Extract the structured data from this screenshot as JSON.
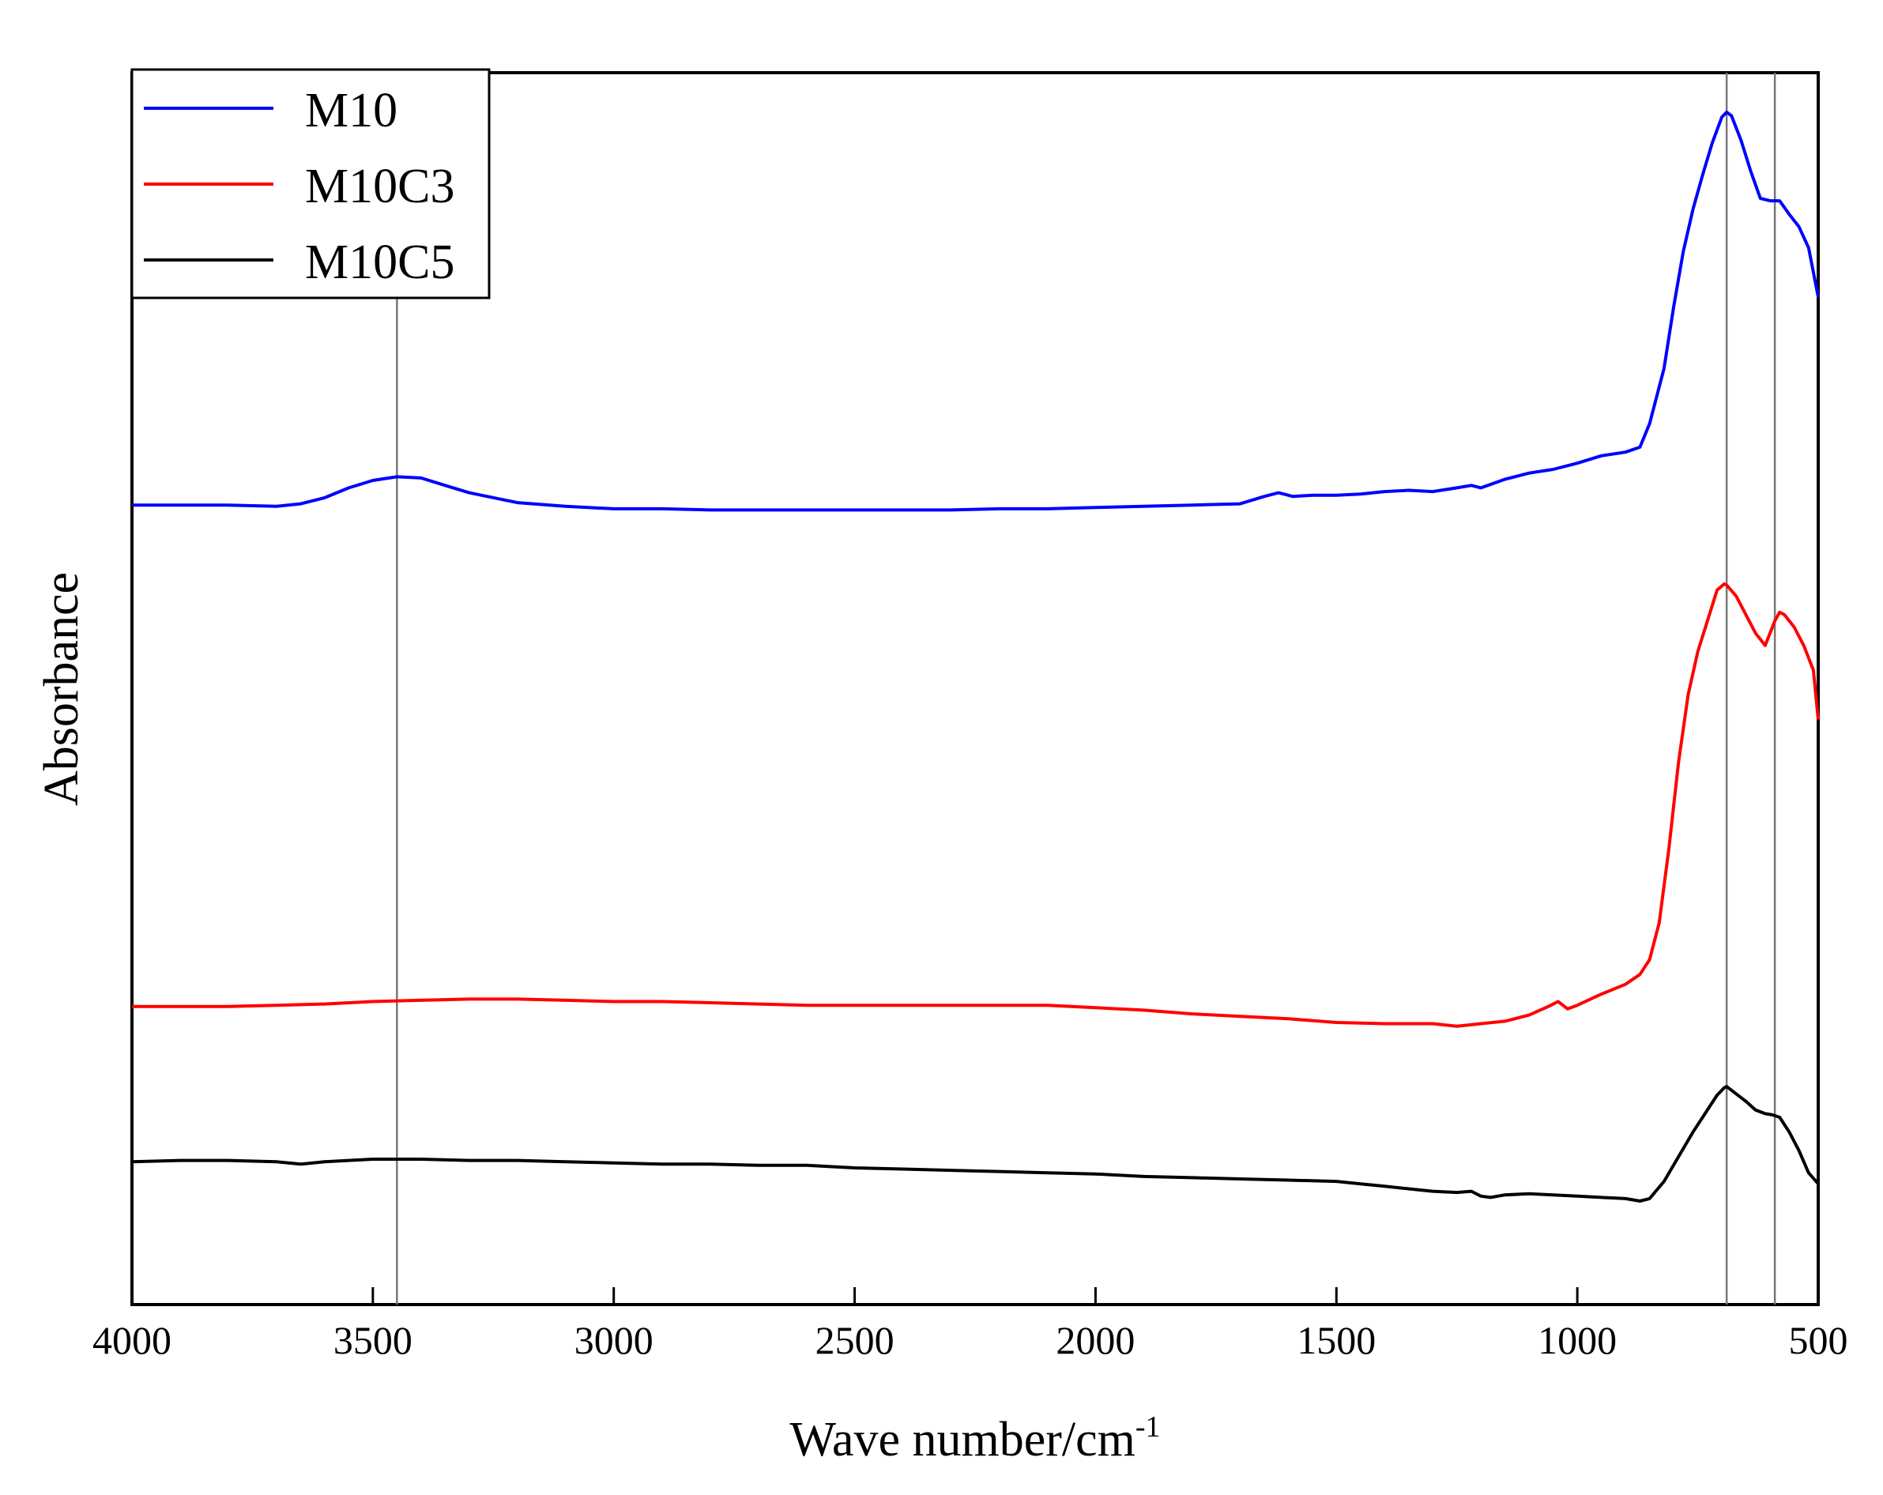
{
  "chart_data": {
    "type": "line",
    "title": "",
    "xlabel": "Wave number/cm",
    "xlabel_superscript": "-1",
    "ylabel": "Absorbance",
    "xlim": [
      4000,
      500
    ],
    "ylim": [
      0,
      100
    ],
    "x_reversed": true,
    "y_ticks_shown": false,
    "xticks": [
      4000,
      3500,
      3000,
      2500,
      2000,
      1500,
      1000,
      500
    ],
    "xtick_labels": [
      "4000",
      "3500",
      "3000",
      "2500",
      "2000",
      "1500",
      "1000",
      "500"
    ],
    "legend_position": "top-left",
    "reference_lines_x": [
      3450,
      690,
      590
    ],
    "series": [
      {
        "name": "M10",
        "color": "#0000ff",
        "points": [
          [
            4000,
            64.9
          ],
          [
            3900,
            64.9
          ],
          [
            3800,
            64.9
          ],
          [
            3700,
            64.8
          ],
          [
            3650,
            65.0
          ],
          [
            3600,
            65.5
          ],
          [
            3550,
            66.3
          ],
          [
            3500,
            66.9
          ],
          [
            3450,
            67.2
          ],
          [
            3400,
            67.1
          ],
          [
            3350,
            66.5
          ],
          [
            3300,
            65.9
          ],
          [
            3200,
            65.1
          ],
          [
            3100,
            64.8
          ],
          [
            3000,
            64.6
          ],
          [
            2900,
            64.6
          ],
          [
            2800,
            64.5
          ],
          [
            2700,
            64.5
          ],
          [
            2600,
            64.5
          ],
          [
            2500,
            64.5
          ],
          [
            2400,
            64.5
          ],
          [
            2300,
            64.5
          ],
          [
            2200,
            64.6
          ],
          [
            2100,
            64.6
          ],
          [
            2000,
            64.7
          ],
          [
            1900,
            64.8
          ],
          [
            1800,
            64.9
          ],
          [
            1700,
            65.0
          ],
          [
            1650,
            65.6
          ],
          [
            1620,
            65.9
          ],
          [
            1590,
            65.6
          ],
          [
            1550,
            65.7
          ],
          [
            1500,
            65.7
          ],
          [
            1450,
            65.8
          ],
          [
            1400,
            66.0
          ],
          [
            1350,
            66.1
          ],
          [
            1300,
            66.0
          ],
          [
            1250,
            66.3
          ],
          [
            1220,
            66.5
          ],
          [
            1200,
            66.3
          ],
          [
            1150,
            67.0
          ],
          [
            1100,
            67.5
          ],
          [
            1050,
            67.8
          ],
          [
            1000,
            68.3
          ],
          [
            950,
            68.9
          ],
          [
            900,
            69.2
          ],
          [
            870,
            69.6
          ],
          [
            850,
            71.5
          ],
          [
            820,
            76.0
          ],
          [
            800,
            81.0
          ],
          [
            780,
            85.5
          ],
          [
            760,
            88.9
          ],
          [
            740,
            91.7
          ],
          [
            720,
            94.3
          ],
          [
            700,
            96.4
          ],
          [
            690,
            96.8
          ],
          [
            680,
            96.5
          ],
          [
            660,
            94.5
          ],
          [
            640,
            92.0
          ],
          [
            620,
            89.8
          ],
          [
            600,
            89.6
          ],
          [
            580,
            89.6
          ],
          [
            560,
            88.5
          ],
          [
            540,
            87.5
          ],
          [
            520,
            85.8
          ],
          [
            500,
            81.8
          ]
        ]
      },
      {
        "name": "M10C3",
        "color": "#ff0000",
        "points": [
          [
            4000,
            24.2
          ],
          [
            3900,
            24.2
          ],
          [
            3800,
            24.2
          ],
          [
            3700,
            24.3
          ],
          [
            3600,
            24.4
          ],
          [
            3500,
            24.6
          ],
          [
            3400,
            24.7
          ],
          [
            3300,
            24.8
          ],
          [
            3200,
            24.8
          ],
          [
            3100,
            24.7
          ],
          [
            3000,
            24.6
          ],
          [
            2900,
            24.6
          ],
          [
            2800,
            24.5
          ],
          [
            2700,
            24.4
          ],
          [
            2600,
            24.3
          ],
          [
            2500,
            24.3
          ],
          [
            2400,
            24.3
          ],
          [
            2300,
            24.3
          ],
          [
            2200,
            24.3
          ],
          [
            2100,
            24.3
          ],
          [
            2000,
            24.1
          ],
          [
            1900,
            23.9
          ],
          [
            1800,
            23.6
          ],
          [
            1700,
            23.4
          ],
          [
            1600,
            23.2
          ],
          [
            1500,
            22.9
          ],
          [
            1400,
            22.8
          ],
          [
            1300,
            22.8
          ],
          [
            1250,
            22.6
          ],
          [
            1200,
            22.8
          ],
          [
            1150,
            23.0
          ],
          [
            1100,
            23.5
          ],
          [
            1060,
            24.2
          ],
          [
            1040,
            24.6
          ],
          [
            1020,
            24.0
          ],
          [
            1000,
            24.3
          ],
          [
            950,
            25.2
          ],
          [
            900,
            26.0
          ],
          [
            870,
            26.8
          ],
          [
            850,
            28.0
          ],
          [
            830,
            31.0
          ],
          [
            810,
            37.0
          ],
          [
            790,
            44.0
          ],
          [
            770,
            49.5
          ],
          [
            750,
            53.0
          ],
          [
            730,
            55.5
          ],
          [
            710,
            58.0
          ],
          [
            695,
            58.5
          ],
          [
            690,
            58.4
          ],
          [
            670,
            57.5
          ],
          [
            650,
            56.0
          ],
          [
            630,
            54.5
          ],
          [
            610,
            53.5
          ],
          [
            590,
            55.5
          ],
          [
            580,
            56.2
          ],
          [
            570,
            56.0
          ],
          [
            550,
            55.0
          ],
          [
            530,
            53.5
          ],
          [
            510,
            51.5
          ],
          [
            500,
            47.5
          ]
        ]
      },
      {
        "name": "M10C5",
        "color": "#000000",
        "points": [
          [
            4000,
            11.6
          ],
          [
            3900,
            11.7
          ],
          [
            3800,
            11.7
          ],
          [
            3700,
            11.6
          ],
          [
            3650,
            11.4
          ],
          [
            3600,
            11.6
          ],
          [
            3500,
            11.8
          ],
          [
            3400,
            11.8
          ],
          [
            3300,
            11.7
          ],
          [
            3200,
            11.7
          ],
          [
            3100,
            11.6
          ],
          [
            3000,
            11.5
          ],
          [
            2900,
            11.4
          ],
          [
            2800,
            11.4
          ],
          [
            2700,
            11.3
          ],
          [
            2600,
            11.3
          ],
          [
            2500,
            11.1
          ],
          [
            2400,
            11.0
          ],
          [
            2300,
            10.9
          ],
          [
            2200,
            10.8
          ],
          [
            2100,
            10.7
          ],
          [
            2000,
            10.6
          ],
          [
            1900,
            10.4
          ],
          [
            1800,
            10.3
          ],
          [
            1700,
            10.2
          ],
          [
            1600,
            10.1
          ],
          [
            1500,
            10.0
          ],
          [
            1450,
            9.8
          ],
          [
            1400,
            9.6
          ],
          [
            1350,
            9.4
          ],
          [
            1300,
            9.2
          ],
          [
            1250,
            9.1
          ],
          [
            1220,
            9.2
          ],
          [
            1200,
            8.8
          ],
          [
            1180,
            8.7
          ],
          [
            1150,
            8.9
          ],
          [
            1100,
            9.0
          ],
          [
            1050,
            8.9
          ],
          [
            1000,
            8.8
          ],
          [
            950,
            8.7
          ],
          [
            900,
            8.6
          ],
          [
            870,
            8.4
          ],
          [
            850,
            8.6
          ],
          [
            820,
            10.0
          ],
          [
            790,
            12.0
          ],
          [
            760,
            14.0
          ],
          [
            730,
            15.8
          ],
          [
            710,
            17.0
          ],
          [
            695,
            17.6
          ],
          [
            690,
            17.7
          ],
          [
            670,
            17.1
          ],
          [
            650,
            16.5
          ],
          [
            630,
            15.8
          ],
          [
            610,
            15.5
          ],
          [
            595,
            15.4
          ],
          [
            580,
            15.2
          ],
          [
            560,
            14.0
          ],
          [
            540,
            12.5
          ],
          [
            520,
            10.7
          ],
          [
            500,
            9.8
          ]
        ]
      }
    ]
  }
}
